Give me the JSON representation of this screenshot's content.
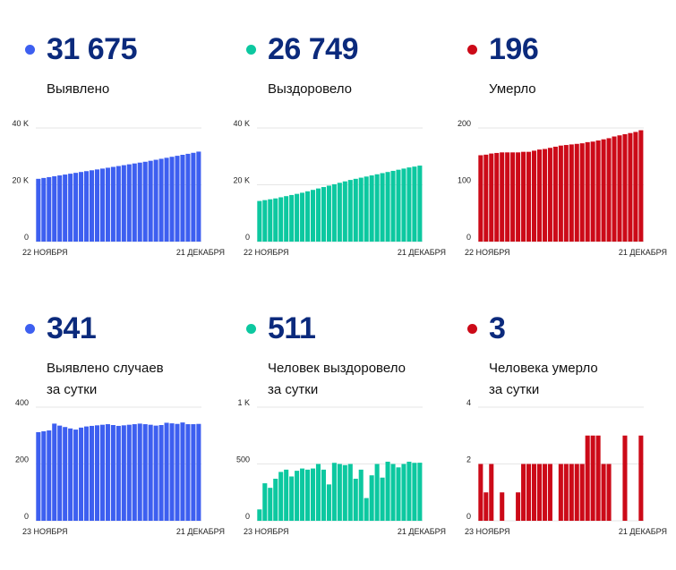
{
  "colors": {
    "blue": "#3d5ff0",
    "green": "#0cc8a0",
    "red": "#cc0a18",
    "value_text": "#0b2a7c"
  },
  "panels": [
    {
      "value": "31 675",
      "label_line1": "Выявлено",
      "label_line2": "",
      "color": "blue"
    },
    {
      "value": "26 749",
      "label_line1": "Выздоровело",
      "label_line2": "",
      "color": "green"
    },
    {
      "value": "196",
      "label_line1": "Умерло",
      "label_line2": "",
      "color": "red"
    },
    {
      "value": "341",
      "label_line1": "Выявлено случаев",
      "label_line2": "за сутки",
      "color": "blue"
    },
    {
      "value": "511",
      "label_line1": "Человек выздоровело",
      "label_line2": "за сутки",
      "color": "green"
    },
    {
      "value": "3",
      "label_line1": "Человека умерло",
      "label_line2": "за сутки",
      "color": "red"
    }
  ],
  "chart_data": [
    {
      "type": "bar",
      "x_start_label": "22 НОЯБРЯ",
      "x_end_label": "21 ДЕКАБРЯ",
      "ylim": [
        0,
        40000
      ],
      "y_ticks": [
        0,
        20000,
        40000
      ],
      "y_tick_labels": [
        "0",
        "20 K",
        "40 K"
      ],
      "values": [
        22100,
        22400,
        22700,
        23000,
        23300,
        23600,
        23900,
        24200,
        24500,
        24800,
        25100,
        25400,
        25700,
        26000,
        26300,
        26600,
        26900,
        27200,
        27500,
        27800,
        28100,
        28450,
        28800,
        29150,
        29500,
        29850,
        30200,
        30550,
        30900,
        31250,
        31675
      ]
    },
    {
      "type": "bar",
      "x_start_label": "22 НОЯБРЯ",
      "x_end_label": "21 ДЕКАБРЯ",
      "ylim": [
        0,
        40000
      ],
      "y_ticks": [
        0,
        20000,
        40000
      ],
      "y_tick_labels": [
        "0",
        "20 K",
        "40 K"
      ],
      "values": [
        14300,
        14600,
        14900,
        15200,
        15600,
        16000,
        16400,
        16800,
        17200,
        17700,
        18200,
        18700,
        19200,
        19700,
        20200,
        20700,
        21200,
        21700,
        22100,
        22500,
        22900,
        23300,
        23700,
        24100,
        24500,
        24900,
        25300,
        25700,
        26100,
        26400,
        26749
      ]
    },
    {
      "type": "bar",
      "x_start_label": "22 НОЯБРЯ",
      "x_end_label": "21 ДЕКАБРЯ",
      "ylim": [
        0,
        200
      ],
      "y_ticks": [
        0,
        100,
        200
      ],
      "y_tick_labels": [
        "0",
        "100",
        "200"
      ],
      "values": [
        152,
        153,
        155,
        156,
        157,
        157,
        157,
        157,
        158,
        158,
        160,
        162,
        163,
        165,
        167,
        169,
        170,
        171,
        172,
        173,
        175,
        176,
        178,
        180,
        182,
        185,
        187,
        189,
        191,
        193,
        196
      ]
    },
    {
      "type": "bar",
      "x_start_label": "23 НОЯБРЯ",
      "x_end_label": "21 ДЕКАБРЯ",
      "ylim": [
        0,
        400
      ],
      "y_ticks": [
        0,
        200,
        400
      ],
      "y_tick_labels": [
        "0",
        "200",
        "400"
      ],
      "values": [
        312,
        315,
        318,
        342,
        335,
        330,
        325,
        321,
        328,
        332,
        334,
        336,
        338,
        340,
        337,
        334,
        336,
        338,
        340,
        342,
        340,
        338,
        335,
        337,
        345,
        343,
        341,
        346,
        340,
        340,
        341
      ]
    },
    {
      "type": "bar",
      "x_start_label": "23 НОЯБРЯ",
      "x_end_label": "21 ДЕКАБРЯ",
      "ylim": [
        0,
        1000
      ],
      "y_ticks": [
        0,
        500,
        1000
      ],
      "y_tick_labels": [
        "0",
        "500",
        "1 K"
      ],
      "values": [
        100,
        330,
        290,
        370,
        430,
        450,
        390,
        440,
        460,
        450,
        460,
        500,
        450,
        320,
        510,
        500,
        490,
        500,
        370,
        450,
        200,
        400,
        500,
        380,
        520,
        500,
        470,
        500,
        520,
        510,
        511
      ]
    },
    {
      "type": "bar",
      "x_start_label": "23 НОЯБРЯ",
      "x_end_label": "21 ДЕКАБРЯ",
      "ylim": [
        0,
        4
      ],
      "y_ticks": [
        0,
        2,
        4
      ],
      "y_tick_labels": [
        "0",
        "2",
        "4"
      ],
      "values": [
        2,
        1,
        2,
        0,
        1,
        0,
        0,
        1,
        2,
        2,
        2,
        2,
        2,
        2,
        0,
        2,
        2,
        2,
        2,
        2,
        3,
        3,
        3,
        2,
        2,
        0,
        0,
        3,
        0,
        0,
        3
      ]
    }
  ]
}
